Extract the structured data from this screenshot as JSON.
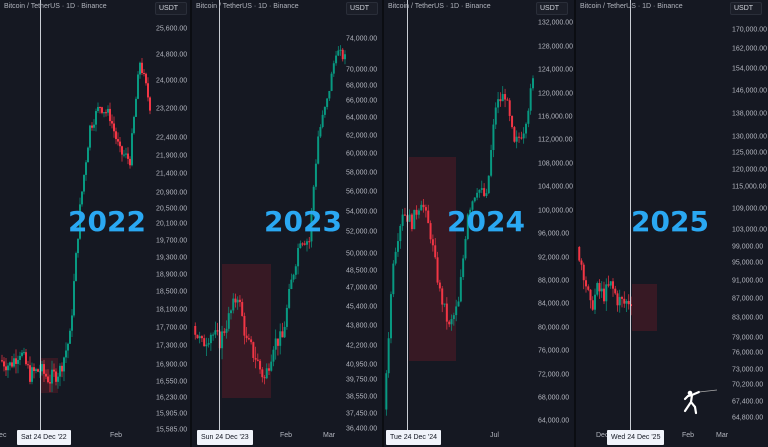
{
  "colors": {
    "up": "#089981",
    "down": "#f23645",
    "year": "#2aa8f2",
    "zone": "#6e1e28"
  },
  "logo": "fencer-icon",
  "chart_data": [
    {
      "type": "candlestick",
      "title": "Bitcoin / TetherUS · 1D · Binance",
      "currency": "USDT",
      "year_label": "2022",
      "y_ticks": [
        "25,600.00",
        "24,800.00",
        "24,000.00",
        "23,200.00",
        "22,400.00",
        "21,900.00",
        "21,400.00",
        "20,900.00",
        "20,500.00",
        "20,100.00",
        "19,700.00",
        "19,300.00",
        "18,900.00",
        "18,500.00",
        "18,100.00",
        "17,700.00",
        "17,300.00",
        "16,900.00",
        "16,550.00",
        "16,230.00",
        "15,905.00",
        "15,585.00"
      ],
      "x_ticks": [
        "Dec",
        "Feb"
      ],
      "crosshair_date": "Sat 24 Dec '22",
      "approx_closes": [
        17000,
        16900,
        17200,
        16700,
        16800,
        16600,
        16800,
        17500,
        20500,
        22700,
        23300,
        23000,
        22000,
        21800,
        24600,
        23300
      ]
    },
    {
      "type": "candlestick",
      "title": "Bitcoin / TetherUS · 1D · Binance",
      "currency": "USDT",
      "year_label": "2023",
      "y_ticks": [
        "74,000.00",
        "70,000.00",
        "68,000.00",
        "66,000.00",
        "64,000.00",
        "62,000.00",
        "60,000.00",
        "58,000.00",
        "56,000.00",
        "54,000.00",
        "52,000.00",
        "50,000.00",
        "48,500.00",
        "47,000.00",
        "45,400.00",
        "43,800.00",
        "42,200.00",
        "40,950.00",
        "39,750.00",
        "38,550.00",
        "37,450.00",
        "36,400.00"
      ],
      "x_ticks": [
        "Feb",
        "Mar"
      ],
      "crosshair_date": "Sun 24 Dec '23",
      "approx_closes": [
        43800,
        42300,
        43300,
        42600,
        44500,
        46500,
        42500,
        41500,
        39800,
        42500,
        42800,
        47500,
        51500,
        51200,
        62000,
        66000,
        72500,
        71500
      ]
    },
    {
      "type": "candlestick",
      "title": "Bitcoin / TetherUS · 1D · Binance",
      "currency": "USDT",
      "year_label": "2024",
      "y_ticks": [
        "132,000.00",
        "128,000.00",
        "124,000.00",
        "120,000.00",
        "116,000.00",
        "112,000.00",
        "108,000.00",
        "104,000.00",
        "100,000.00",
        "96,000.00",
        "92,000.00",
        "88,000.00",
        "84,000.00",
        "80,000.00",
        "76,000.00",
        "72,000.00",
        "68,000.00",
        "64,000.00"
      ],
      "x_ticks": [
        "Jul"
      ],
      "crosshair_date": "Tue 24 Dec '24",
      "approx_closes": [
        66000,
        92000,
        100000,
        98000,
        102000,
        96000,
        86000,
        80000,
        84000,
        100000,
        104000,
        102000,
        118000,
        120000,
        111000,
        114000,
        122000
      ]
    },
    {
      "type": "candlestick",
      "title": "Bitcoin / TetherUS · 1D · Binance",
      "currency": "USDT",
      "year_label": "2025",
      "y_ticks": [
        "170,000.00",
        "162,000.00",
        "154,000.00",
        "146,000.00",
        "138,000.00",
        "130,000.00",
        "125,000.00",
        "120,000.00",
        "115,000.00",
        "109,000.00",
        "103,000.00",
        "99,000.00",
        "95,000.00",
        "91,000.00",
        "87,000.00",
        "83,000.00",
        "79,000.00",
        "76,000.00",
        "73,000.00",
        "70,200.00",
        "67,400.00",
        "64,800.00"
      ],
      "x_ticks": [
        "Dec",
        "Feb",
        "Mar"
      ],
      "crosshair_date": "Wed 24 Dec '25",
      "approx_closes": [
        99000,
        93000,
        85000,
        89000,
        88000,
        90000,
        87000,
        86000,
        87000
      ]
    }
  ]
}
